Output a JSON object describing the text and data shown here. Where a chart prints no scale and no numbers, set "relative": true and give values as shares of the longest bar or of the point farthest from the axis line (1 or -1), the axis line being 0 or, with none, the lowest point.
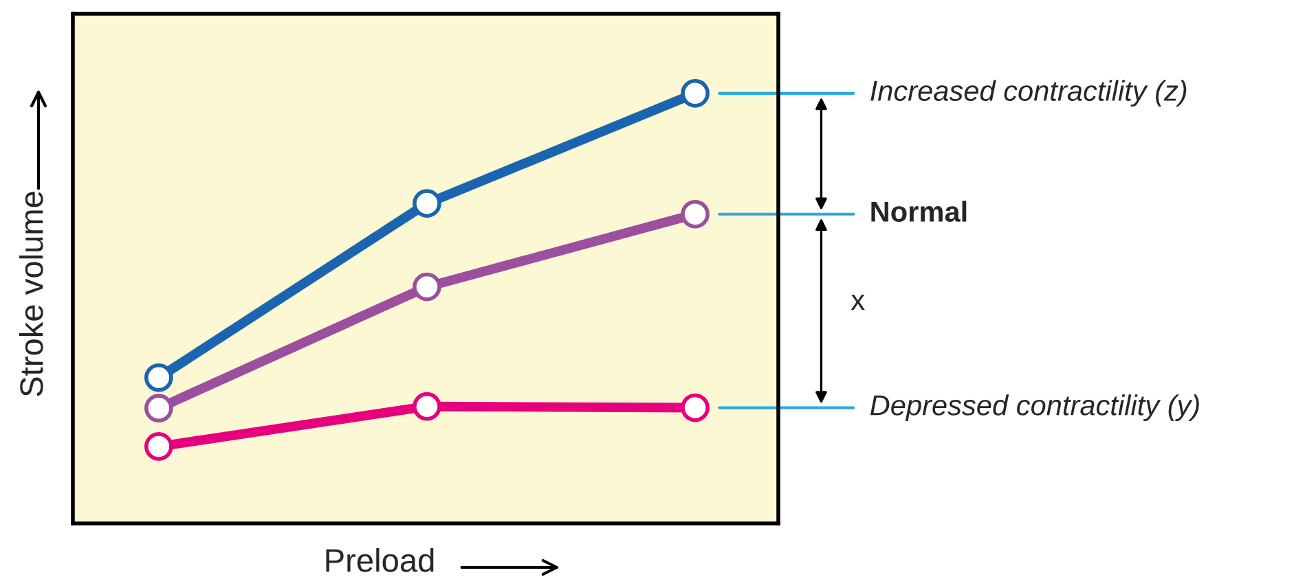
{
  "chart_data": {
    "type": "line",
    "relative": true,
    "xlabel": "Preload",
    "ylabel": "Stroke volume",
    "categories": [
      null,
      null,
      null
    ],
    "series": [
      {
        "name": "Increased contractility (z)",
        "color": "#1a64b0",
        "values": [
          0.339,
          0.744,
          1.0
        ]
      },
      {
        "name": "Normal",
        "color": "#9b4f9e",
        "values": [
          0.268,
          0.55,
          0.719
        ]
      },
      {
        "name": "Depressed contractility (y)",
        "color": "#e6007e",
        "values": [
          0.179,
          0.272,
          0.269
        ]
      }
    ],
    "annotations": [
      "x"
    ],
    "marker": "circle",
    "line_style": "solid"
  }
}
